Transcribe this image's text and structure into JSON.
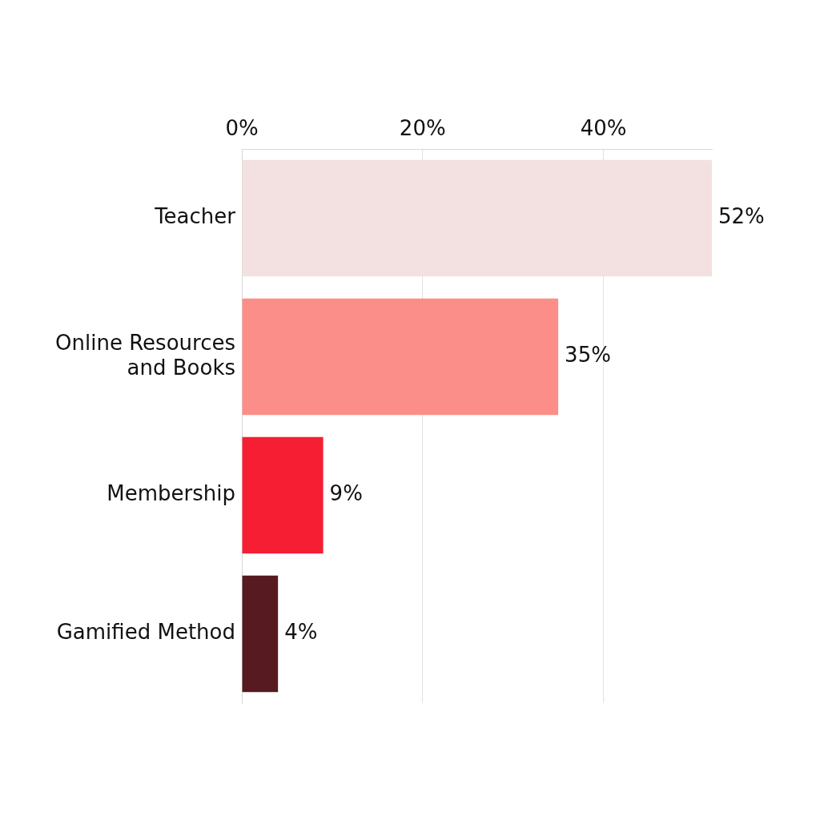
{
  "chart_data": {
    "type": "bar",
    "orientation": "horizontal",
    "categories": [
      "Teacher",
      "Online Resources\nand Books",
      "Membership",
      "Gamified Method"
    ],
    "values": [
      52,
      35,
      9,
      4
    ],
    "value_labels": [
      "52%",
      "35%",
      "9%",
      "4%"
    ],
    "data_labels": true,
    "colors": [
      "#f2e1e0",
      "#fc8e8a",
      "#f51e32",
      "#561a20"
    ],
    "xlim": [
      0,
      52
    ],
    "xticks": [
      {
        "value": 0,
        "label": "0%"
      },
      {
        "value": 20,
        "label": "20%"
      },
      {
        "value": 40,
        "label": "40%"
      }
    ],
    "grid": true
  }
}
